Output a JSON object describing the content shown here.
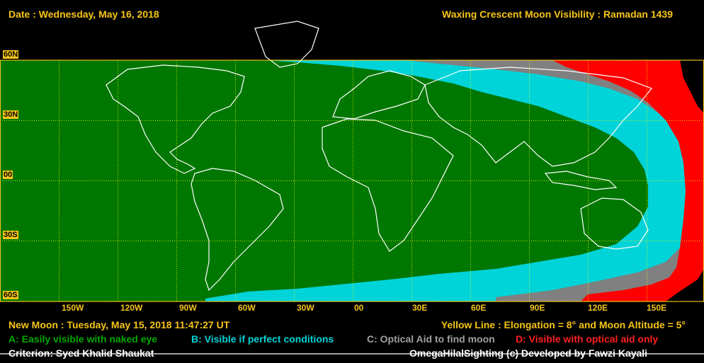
{
  "header": {
    "date": "Date : Wednesday, May 16, 2018",
    "title": "Waxing Crescent Moon Visibility : Ramadan 1439"
  },
  "map": {
    "lat_labels": [
      "60N",
      "30N",
      "00",
      "30S",
      "60S"
    ],
    "lon_labels": [
      "150W",
      "120W",
      "90W",
      "60W",
      "30W",
      "00",
      "30E",
      "60E",
      "90E",
      "120E",
      "150E"
    ],
    "zone_colors": {
      "A": "#007700",
      "B": "#00d4d8",
      "C": "#808080",
      "D": "#ff0000",
      "unlit": "#000000",
      "grid": "#ffff00",
      "coast": "#ffffff"
    }
  },
  "footer": {
    "new_moon": "New Moon : Tuesday, May 15, 2018  11:47:27  UT",
    "yellow_line": "Yellow Line : Elongation = 8° and Moon Altitude = 5°",
    "legend_a": "A: Easily visible with naked eye",
    "legend_b": "B: Visible if perfect conditions",
    "legend_c": "C: Optical Aid to find moon",
    "legend_d": "D: Visible with optical aid only",
    "criterion": "Criterion: Syed Khalid Shaukat",
    "credit": "OmegaHilalSighting  (c)  Developed by Fawzi Kayali"
  }
}
